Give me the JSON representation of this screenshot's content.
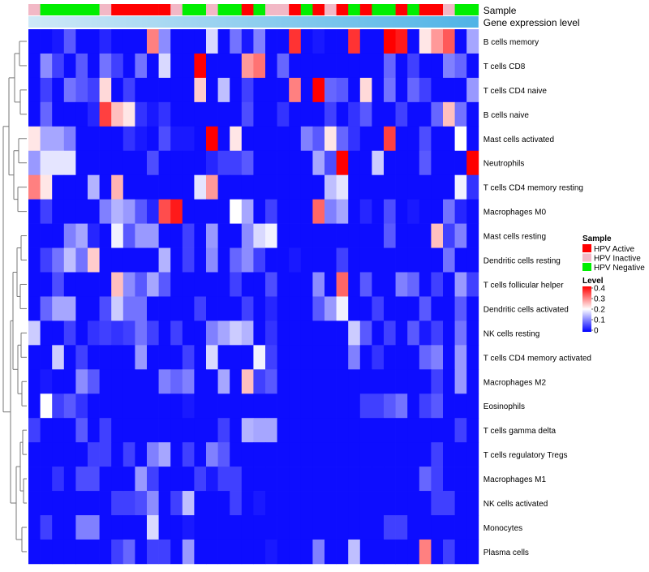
{
  "chart_data": {
    "type": "heatmap",
    "title": "",
    "xlabel": "",
    "ylabel": "",
    "column_annotations": [
      {
        "name": "Sample",
        "label": "Sample"
      },
      {
        "name": "Gene expression level",
        "label": "Gene expression level"
      }
    ],
    "sample_groups": [
      "HPV Inactive",
      "HPV Negative",
      "HPV Negative",
      "HPV Negative",
      "HPV Negative",
      "HPV Negative",
      "HPV Inactive",
      "HPV Active",
      "HPV Active",
      "HPV Active",
      "HPV Active",
      "HPV Active",
      "HPV Inactive",
      "HPV Negative",
      "HPV Negative",
      "HPV Inactive",
      "HPV Negative",
      "HPV Negative",
      "HPV Active",
      "HPV Negative",
      "HPV Inactive",
      "HPV Inactive",
      "HPV Active",
      "HPV Negative",
      "HPV Active",
      "HPV Inactive",
      "HPV Active",
      "HPV Negative",
      "HPV Active",
      "HPV Negative",
      "HPV Negative",
      "HPV Active",
      "HPV Negative",
      "HPV Active",
      "HPV Active",
      "HPV Inactive",
      "HPV Negative",
      "HPV Negative"
    ],
    "legend_sample": {
      "title": "Sample",
      "items": [
        {
          "label": "HPV Active",
          "color": "#ff0000"
        },
        {
          "label": "HPV Inactive",
          "color": "#f2b8c6"
        },
        {
          "label": "HPV Negative",
          "color": "#00ee00"
        }
      ]
    },
    "legend_level": {
      "title": "Level",
      "ticks": [
        "0.4",
        "0.3",
        "0.2",
        "0.1",
        "0"
      ],
      "min": 0,
      "max": 0.4
    },
    "colors": {
      "low": "#0000ff",
      "mid": "#ffffff",
      "high": "#ff0000",
      "expression_bar_start": "#cfe9f7",
      "expression_bar_end": "#4fb3e6"
    },
    "rows": [
      "B cells memory",
      "T cells CD8",
      "T cells CD4 naive",
      "B cells naive",
      "Mast cells activated",
      "Neutrophils",
      "T cells CD4 memory resting",
      "Macrophages M0",
      "Mast cells resting",
      "Dendritic cells resting",
      "T cells follicular helper",
      "Dendritic cells activated",
      "NK cells resting",
      "T cells CD4 memory activated",
      "Macrophages M2",
      "Eosinophils",
      "T cells gamma delta",
      "T cells regulatory  Tregs",
      "Macrophages M1",
      "NK cells activated",
      "Monocytes",
      "Plasma cells"
    ],
    "values": [
      [
        0.01,
        0.01,
        0.02,
        0.07,
        0.01,
        0.01,
        0.03,
        0.01,
        0.01,
        0.01,
        0.3,
        0.11,
        0.01,
        0.01,
        0.01,
        0.17,
        0.01,
        0.09,
        0.02,
        0.1,
        0.01,
        0.01,
        0.36,
        0.01,
        0.02,
        0.01,
        0.01,
        0.36,
        0.01,
        0.01,
        0.4,
        0.38,
        0.01,
        0.22,
        0.28,
        0.33,
        0.01,
        0.13
      ],
      [
        0.01,
        0.11,
        0.05,
        0.01,
        0.07,
        0.01,
        0.09,
        0.05,
        0.01,
        0.09,
        0.01,
        0.17,
        0.01,
        0.01,
        0.4,
        0.01,
        0.01,
        0.01,
        0.28,
        0.31,
        0.01,
        0.08,
        0.01,
        0.01,
        0.01,
        0.01,
        0.01,
        0.01,
        0.01,
        0.01,
        0.08,
        0.01,
        0.05,
        0.01,
        0.01,
        0.1,
        0.08,
        0.01
      ],
      [
        0.01,
        0.05,
        0.01,
        0.09,
        0.07,
        0.05,
        0.23,
        0.01,
        0.05,
        0.01,
        0.01,
        0.01,
        0.01,
        0.01,
        0.24,
        0.01,
        0.15,
        0.01,
        0.05,
        0.01,
        0.01,
        0.01,
        0.3,
        0.01,
        0.4,
        0.08,
        0.07,
        0.01,
        0.23,
        0.01,
        0.09,
        0.01,
        0.08,
        0.05,
        0.01,
        0.01,
        0.01,
        0.12
      ],
      [
        0.01,
        0.08,
        0.01,
        0.01,
        0.01,
        0.03,
        0.35,
        0.25,
        0.22,
        0.04,
        0.02,
        0.04,
        0.01,
        0.01,
        0.01,
        0.01,
        0.01,
        0.01,
        0.06,
        0.01,
        0.01,
        0.04,
        0.01,
        0.01,
        0.01,
        0.05,
        0.01,
        0.04,
        0.07,
        0.01,
        0.01,
        0.05,
        0.01,
        0.01,
        0.08,
        0.25,
        0.09,
        0.01
      ],
      [
        0.22,
        0.13,
        0.13,
        0.1,
        0.01,
        0.01,
        0.01,
        0.01,
        0.04,
        0.02,
        0.01,
        0.06,
        0.02,
        0.02,
        0.01,
        0.4,
        0.01,
        0.22,
        0.01,
        0.01,
        0.01,
        0.01,
        0.01,
        0.1,
        0.07,
        0.22,
        0.08,
        0.04,
        0.01,
        0.01,
        0.35,
        0.01,
        0.01,
        0.06,
        0.01,
        0.01,
        0.2,
        0.01
      ],
      [
        0.12,
        0.18,
        0.18,
        0.18,
        0.01,
        0.01,
        0.01,
        0.01,
        0.01,
        0.01,
        0.06,
        0.01,
        0.01,
        0.01,
        0.01,
        0.03,
        0.05,
        0.05,
        0.07,
        0.01,
        0.01,
        0.01,
        0.01,
        0.01,
        0.13,
        0.06,
        0.4,
        0.01,
        0.01,
        0.16,
        0.01,
        0.01,
        0.01,
        0.07,
        0.01,
        0.01,
        0.01,
        0.4
      ],
      [
        0.3,
        0.22,
        0.01,
        0.01,
        0.01,
        0.14,
        0.01,
        0.26,
        0.01,
        0.01,
        0.01,
        0.01,
        0.01,
        0.01,
        0.18,
        0.28,
        0.01,
        0.01,
        0.01,
        0.01,
        0.01,
        0.01,
        0.01,
        0.01,
        0.01,
        0.15,
        0.18,
        0.01,
        0.01,
        0.01,
        0.01,
        0.01,
        0.01,
        0.01,
        0.01,
        0.01,
        0.19,
        0.04
      ],
      [
        0.01,
        0.05,
        0.01,
        0.01,
        0.01,
        0.01,
        0.1,
        0.14,
        0.12,
        0.07,
        0.03,
        0.34,
        0.38,
        0.01,
        0.01,
        0.01,
        0.01,
        0.2,
        0.13,
        0.01,
        0.05,
        0.01,
        0.01,
        0.01,
        0.32,
        0.1,
        0.13,
        0.01,
        0.03,
        0.01,
        0.06,
        0.01,
        0.02,
        0.01,
        0.01,
        0.09,
        0.03,
        0.01
      ],
      [
        0.01,
        0.01,
        0.01,
        0.1,
        0.13,
        0.03,
        0.01,
        0.19,
        0.07,
        0.12,
        0.12,
        0.01,
        0.01,
        0.05,
        0.01,
        0.12,
        0.01,
        0.01,
        0.11,
        0.17,
        0.19,
        0.01,
        0.01,
        0.01,
        0.01,
        0.01,
        0.01,
        0.01,
        0.01,
        0.01,
        0.07,
        0.01,
        0.01,
        0.01,
        0.25,
        0.05,
        0.1,
        0.01
      ],
      [
        0.01,
        0.05,
        0.09,
        0.15,
        0.09,
        0.24,
        0.01,
        0.01,
        0.01,
        0.01,
        0.01,
        0.14,
        0.01,
        0.05,
        0.01,
        0.11,
        0.01,
        0.08,
        0.11,
        0.05,
        0.01,
        0.01,
        0.02,
        0.01,
        0.01,
        0.01,
        0.05,
        0.01,
        0.01,
        0.01,
        0.01,
        0.01,
        0.01,
        0.01,
        0.01,
        0.09,
        0.01,
        0.01
      ],
      [
        0.01,
        0.01,
        0.06,
        0.01,
        0.01,
        0.01,
        0.01,
        0.25,
        0.11,
        0.07,
        0.13,
        0.07,
        0.01,
        0.01,
        0.01,
        0.01,
        0.01,
        0.05,
        0.01,
        0.01,
        0.06,
        0.01,
        0.01,
        0.01,
        0.11,
        0.01,
        0.32,
        0.01,
        0.07,
        0.01,
        0.01,
        0.1,
        0.08,
        0.01,
        0.05,
        0.01,
        0.12,
        0.05
      ],
      [
        0.01,
        0.08,
        0.13,
        0.13,
        0.01,
        0.01,
        0.06,
        0.16,
        0.09,
        0.09,
        0.01,
        0.01,
        0.01,
        0.01,
        0.05,
        0.01,
        0.01,
        0.01,
        0.05,
        0.01,
        0.03,
        0.01,
        0.01,
        0.01,
        0.07,
        0.12,
        0.19,
        0.01,
        0.01,
        0.05,
        0.01,
        0.01,
        0.01,
        0.07,
        0.01,
        0.01,
        0.07,
        0.01
      ],
      [
        0.16,
        0.01,
        0.01,
        0.05,
        0.01,
        0.04,
        0.05,
        0.04,
        0.05,
        0.09,
        0.05,
        0.01,
        0.05,
        0.01,
        0.01,
        0.1,
        0.13,
        0.16,
        0.14,
        0.01,
        0.04,
        0.01,
        0.01,
        0.01,
        0.01,
        0.01,
        0.01,
        0.16,
        0.07,
        0.01,
        0.05,
        0.01,
        0.07,
        0.02,
        0.05,
        0.01,
        0.09,
        0.01
      ],
      [
        0.01,
        0.01,
        0.16,
        0.01,
        0.05,
        0.01,
        0.01,
        0.01,
        0.01,
        0.12,
        0.01,
        0.01,
        0.01,
        0.05,
        0.01,
        0.17,
        0.01,
        0.01,
        0.01,
        0.19,
        0.05,
        0.01,
        0.01,
        0.01,
        0.01,
        0.01,
        0.01,
        0.1,
        0.01,
        0.04,
        0.01,
        0.01,
        0.01,
        0.08,
        0.1,
        0.01,
        0.12,
        0.01
      ],
      [
        0.01,
        0.02,
        0.01,
        0.01,
        0.11,
        0.07,
        0.01,
        0.01,
        0.01,
        0.01,
        0.01,
        0.1,
        0.08,
        0.1,
        0.01,
        0.01,
        0.13,
        0.01,
        0.25,
        0.05,
        0.07,
        0.01,
        0.01,
        0.01,
        0.01,
        0.01,
        0.01,
        0.01,
        0.01,
        0.01,
        0.01,
        0.01,
        0.01,
        0.01,
        0.05,
        0.01,
        0.12,
        0.01
      ],
      [
        0.01,
        0.2,
        0.05,
        0.07,
        0.04,
        0.01,
        0.01,
        0.01,
        0.01,
        0.01,
        0.01,
        0.01,
        0.01,
        0.02,
        0.01,
        0.01,
        0.01,
        0.01,
        0.01,
        0.01,
        0.01,
        0.01,
        0.01,
        0.01,
        0.01,
        0.01,
        0.01,
        0.01,
        0.05,
        0.05,
        0.07,
        0.09,
        0.01,
        0.05,
        0.07,
        0.01,
        0.01,
        0.01
      ],
      [
        0.05,
        0.01,
        0.01,
        0.01,
        0.07,
        0.01,
        0.05,
        0.01,
        0.01,
        0.01,
        0.01,
        0.01,
        0.01,
        0.01,
        0.01,
        0.01,
        0.05,
        0.01,
        0.14,
        0.13,
        0.13,
        0.01,
        0.01,
        0.01,
        0.01,
        0.01,
        0.01,
        0.01,
        0.01,
        0.01,
        0.01,
        0.01,
        0.01,
        0.01,
        0.01,
        0.01,
        0.05,
        0.01
      ],
      [
        0.01,
        0.01,
        0.01,
        0.01,
        0.01,
        0.05,
        0.05,
        0.01,
        0.05,
        0.01,
        0.1,
        0.13,
        0.01,
        0.05,
        0.01,
        0.1,
        0.07,
        0.01,
        0.01,
        0.01,
        0.01,
        0.01,
        0.01,
        0.01,
        0.01,
        0.01,
        0.01,
        0.01,
        0.01,
        0.01,
        0.01,
        0.01,
        0.01,
        0.01,
        0.05,
        0.01,
        0.01,
        0.01
      ],
      [
        0.01,
        0.01,
        0.04,
        0.01,
        0.06,
        0.06,
        0.01,
        0.01,
        0.01,
        0.12,
        0.05,
        0.01,
        0.01,
        0.01,
        0.05,
        0.02,
        0.05,
        0.05,
        0.01,
        0.01,
        0.01,
        0.01,
        0.01,
        0.01,
        0.01,
        0.01,
        0.01,
        0.01,
        0.01,
        0.01,
        0.01,
        0.01,
        0.01,
        0.08,
        0.05,
        0.01,
        0.01,
        0.01
      ],
      [
        0.01,
        0.01,
        0.01,
        0.01,
        0.01,
        0.01,
        0.01,
        0.05,
        0.05,
        0.06,
        0.11,
        0.01,
        0.05,
        0.15,
        0.01,
        0.01,
        0.01,
        0.05,
        0.01,
        0.02,
        0.01,
        0.01,
        0.01,
        0.01,
        0.01,
        0.01,
        0.01,
        0.01,
        0.01,
        0.01,
        0.01,
        0.01,
        0.01,
        0.01,
        0.05,
        0.05,
        0.01,
        0.01
      ],
      [
        0.01,
        0.05,
        0.01,
        0.01,
        0.1,
        0.1,
        0.01,
        0.01,
        0.01,
        0.01,
        0.17,
        0.01,
        0.01,
        0.02,
        0.01,
        0.01,
        0.01,
        0.01,
        0.01,
        0.01,
        0.01,
        0.01,
        0.01,
        0.01,
        0.01,
        0.01,
        0.01,
        0.01,
        0.01,
        0.01,
        0.05,
        0.05,
        0.01,
        0.01,
        0.01,
        0.01,
        0.01,
        0.01
      ],
      [
        0.01,
        0.01,
        0.01,
        0.01,
        0.01,
        0.01,
        0.01,
        0.05,
        0.08,
        0.01,
        0.05,
        0.05,
        0.01,
        0.12,
        0.01,
        0.01,
        0.01,
        0.01,
        0.01,
        0.01,
        0.02,
        0.01,
        0.01,
        0.01,
        0.1,
        0.01,
        0.01,
        0.15,
        0.01,
        0.01,
        0.01,
        0.01,
        0.01,
        0.3,
        0.01,
        0.05,
        0.01,
        0.01
      ]
    ]
  }
}
